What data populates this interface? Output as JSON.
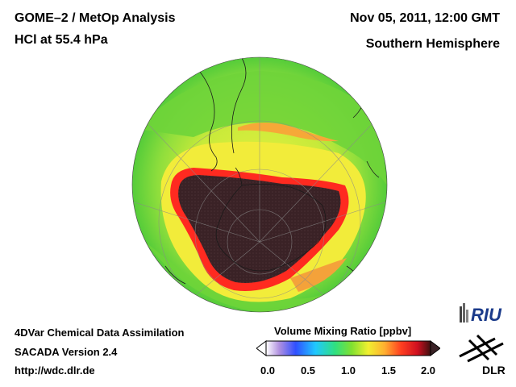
{
  "header": {
    "title": "GOME–2 / MetOp Analysis",
    "subtitle": "HCl at 55.4 hPa",
    "datetime": "Nov 05, 2011, 12:00 GMT",
    "hemisphere": "Southern Hemisphere"
  },
  "footer": {
    "line1": "4DVar Chemical Data Assimilation",
    "line2": "SACADA Version 2.4",
    "line3": "http://wdc.dlr.de"
  },
  "colorbar": {
    "title": "Volume Mixing Ratio [ppbv]",
    "ticks": [
      "0.0",
      "0.5",
      "1.0",
      "1.5",
      "2.0"
    ],
    "min": 0.0,
    "max": 2.0
  },
  "logos": {
    "riu": "RIU",
    "dlr": "DLR"
  },
  "colors": {
    "low_hcl": "#3a2226",
    "background_field": "#7ddc3a",
    "edge": "#ff2020"
  }
}
